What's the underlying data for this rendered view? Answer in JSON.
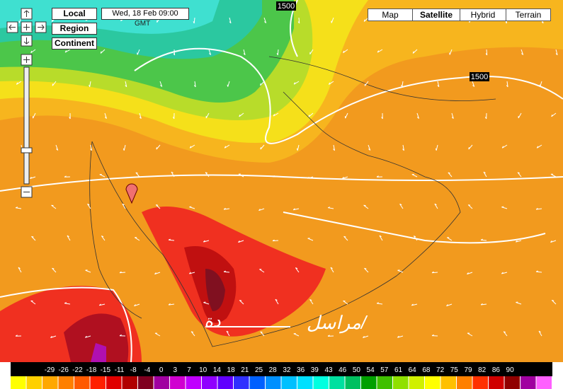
{
  "view_buttons": [
    "Local",
    "Region",
    "Continent"
  ],
  "time": {
    "date": "Wed, 18 Feb 09:00",
    "zone": "GMT"
  },
  "map_types": {
    "items": [
      "Map",
      "Satellite",
      "Hybrid",
      "Terrain"
    ],
    "active": "Satellite"
  },
  "contour_labels": [
    "1500",
    "1500"
  ],
  "overlay_text": [
    "مراسل/",
    "دة"
  ],
  "legend": {
    "labels": [
      -29,
      -26,
      -22,
      -18,
      -15,
      -11,
      -8,
      -4,
      0,
      3,
      7,
      10,
      14,
      18,
      21,
      25,
      28,
      32,
      36,
      39,
      43,
      46,
      50,
      54,
      57,
      61,
      64,
      68,
      72,
      75,
      79,
      82,
      86,
      90
    ],
    "colors": [
      "#ffff00",
      "#ffd000",
      "#ffa800",
      "#ff8000",
      "#ff5a00",
      "#ff2000",
      "#e00000",
      "#b00000",
      "#800020",
      "#a000a0",
      "#d000d0",
      "#c000ff",
      "#9000ff",
      "#6000ff",
      "#3030ff",
      "#0060ff",
      "#0090ff",
      "#00c0ff",
      "#00e0ff",
      "#00ffe0",
      "#00e0a0",
      "#00c060",
      "#00a000",
      "#40c000",
      "#90e000",
      "#d0f000",
      "#ffff00",
      "#ffc000",
      "#ff8000",
      "#ff3000",
      "#d00000",
      "#900000",
      "#a000a0",
      "#ff60ff"
    ]
  }
}
